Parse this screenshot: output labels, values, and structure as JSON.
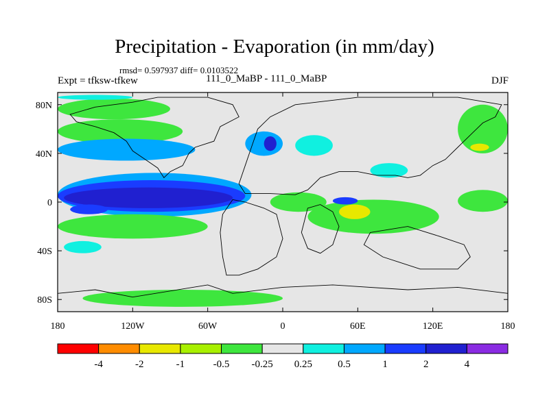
{
  "header": {
    "title": "Precipitation - Evaporation (in mm/day)",
    "stats": "rmsd= 0.597937 diff= 0.0103522",
    "expt": "Expt = tfksw-tfkew",
    "subtitle": "111_0_MaBP - 111_0_MaBP",
    "season": "DJF"
  },
  "chart_data": {
    "type": "heatmap",
    "title": "Precipitation - Evaporation (in mm/day)",
    "xlabel": "",
    "ylabel": "",
    "xlim": [
      -180,
      180
    ],
    "ylim": [
      -90,
      90
    ],
    "x_ticks": [
      {
        "value": -180,
        "label": "180"
      },
      {
        "value": -120,
        "label": "120W"
      },
      {
        "value": -60,
        "label": "60W"
      },
      {
        "value": 0,
        "label": "0"
      },
      {
        "value": 60,
        "label": "60E"
      },
      {
        "value": 120,
        "label": "120E"
      },
      {
        "value": 180,
        "label": "180"
      }
    ],
    "y_ticks": [
      {
        "value": 80,
        "label": "80N"
      },
      {
        "value": 40,
        "label": "40N"
      },
      {
        "value": 0,
        "label": "0"
      },
      {
        "value": -40,
        "label": "40S"
      },
      {
        "value": -80,
        "label": "80S"
      }
    ],
    "colorbar": {
      "levels": [
        "-4",
        "-2",
        "-1",
        "-0.5",
        "-0.25",
        "0.25",
        "0.5",
        "1",
        "2",
        "4"
      ],
      "colors": [
        "#ff0000",
        "#ff8c00",
        "#e8e800",
        "#a8f000",
        "#3ee63e",
        "#e6e6e6",
        "#10f0e0",
        "#00a8ff",
        "#1a3cff",
        "#2020d0",
        "#8a2be2"
      ]
    },
    "regions": [
      {
        "name": "tropical-pacific-deep-band",
        "lon": [
          -175,
          -40
        ],
        "lat": [
          -5,
          12
        ],
        "category": 9
      },
      {
        "name": "tropical-pacific-band",
        "lon": [
          -180,
          -30
        ],
        "lat": [
          -8,
          18
        ],
        "category": 8
      },
      {
        "name": "tropical-pacific-outer",
        "lon": [
          -180,
          -25
        ],
        "lat": [
          -12,
          24
        ],
        "category": 7
      },
      {
        "name": "north-pacific-storm-track",
        "lon": [
          -180,
          -70
        ],
        "lat": [
          34,
          52
        ],
        "category": 7
      },
      {
        "name": "north-atlantic-deep",
        "lon": [
          -15,
          -5
        ],
        "lat": [
          42,
          54
        ],
        "category": 9
      },
      {
        "name": "north-atlantic",
        "lon": [
          -30,
          0
        ],
        "lat": [
          38,
          58
        ],
        "category": 7
      },
      {
        "name": "eurasia-cyan",
        "lon": [
          10,
          40
        ],
        "lat": [
          38,
          55
        ],
        "category": 6
      },
      {
        "name": "indian-ocean-blue",
        "lon": [
          40,
          60
        ],
        "lat": [
          -2,
          4
        ],
        "category": 8
      },
      {
        "name": "southern-pacific-blue",
        "lon": [
          -170,
          -140
        ],
        "lat": [
          -10,
          -2
        ],
        "category": 8
      },
      {
        "name": "southern-ocean-cyan",
        "lon": [
          -175,
          -145
        ],
        "lat": [
          -42,
          -32
        ],
        "category": 6
      },
      {
        "name": "indian-ocean-yellow",
        "lon": [
          45,
          70
        ],
        "lat": [
          -14,
          -2
        ],
        "category": 2
      },
      {
        "name": "south-indian-green",
        "lon": [
          20,
          125
        ],
        "lat": [
          -26,
          2
        ],
        "category": 4
      },
      {
        "name": "africa-green",
        "lon": [
          -10,
          35
        ],
        "lat": [
          -8,
          8
        ],
        "category": 4
      },
      {
        "name": "north-pacific-green",
        "lon": [
          -180,
          -80
        ],
        "lat": [
          48,
          68
        ],
        "category": 4
      },
      {
        "name": "arctic-green",
        "lon": [
          -180,
          -90
        ],
        "lat": [
          68,
          85
        ],
        "category": 4
      },
      {
        "name": "arctic-cyan",
        "lon": [
          -180,
          -120
        ],
        "lat": [
          84,
          88
        ],
        "category": 6
      },
      {
        "name": "southern-pacific-green",
        "lon": [
          -180,
          -60
        ],
        "lat": [
          -30,
          -10
        ],
        "category": 4
      },
      {
        "name": "southern-ocean-green",
        "lon": [
          -160,
          0
        ],
        "lat": [
          -86,
          -72
        ],
        "category": 4
      },
      {
        "name": "west-pacific-green",
        "lon": [
          140,
          180
        ],
        "lat": [
          -8,
          10
        ],
        "category": 4
      },
      {
        "name": "north-asia-green",
        "lon": [
          140,
          180
        ],
        "lat": [
          40,
          80
        ],
        "category": 4
      },
      {
        "name": "india-cyan",
        "lon": [
          70,
          100
        ],
        "lat": [
          20,
          32
        ],
        "category": 6
      },
      {
        "name": "east-asia-yellow",
        "lon": [
          150,
          165
        ],
        "lat": [
          42,
          48
        ],
        "category": 2
      }
    ]
  }
}
